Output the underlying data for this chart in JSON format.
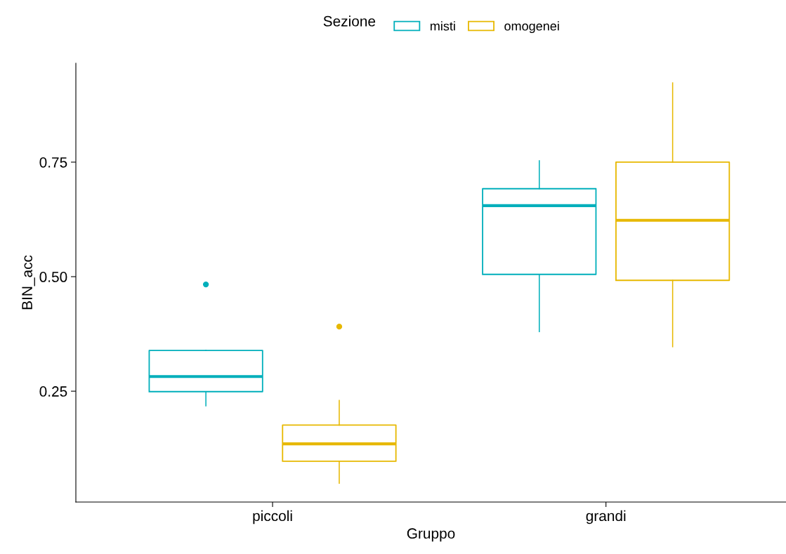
{
  "chart_data": {
    "type": "box",
    "xlabel": "Gruppo",
    "ylabel": "BIN_acc",
    "legend_title": "Sezione",
    "legend": "top",
    "grid": false,
    "categories": [
      "piccoli",
      "grandi"
    ],
    "ylim": [
      0.008,
      0.966
    ],
    "yticks": [
      0.25,
      {
        "value": 0.5,
        "label": "0.50"
      },
      0.75
    ],
    "series": [
      {
        "name": "misti",
        "color": "#00afbb",
        "boxes": [
          {
            "low": 0.218,
            "q1": 0.249,
            "median": 0.282,
            "q3": 0.339,
            "high": 0.339,
            "outliers": [
              0.483
            ]
          },
          {
            "low": 0.38,
            "q1": 0.505,
            "median": 0.655,
            "q3": 0.692,
            "high": 0.753
          }
        ]
      },
      {
        "name": "omogenei",
        "color": "#e7b800",
        "boxes": [
          {
            "low": 0.049,
            "q1": 0.097,
            "median": 0.135,
            "q3": 0.176,
            "high": 0.23,
            "outliers": [
              0.391
            ]
          },
          {
            "low": 0.347,
            "q1": 0.492,
            "median": 0.623,
            "q3": 0.75,
            "high": 0.923
          }
        ]
      }
    ]
  }
}
